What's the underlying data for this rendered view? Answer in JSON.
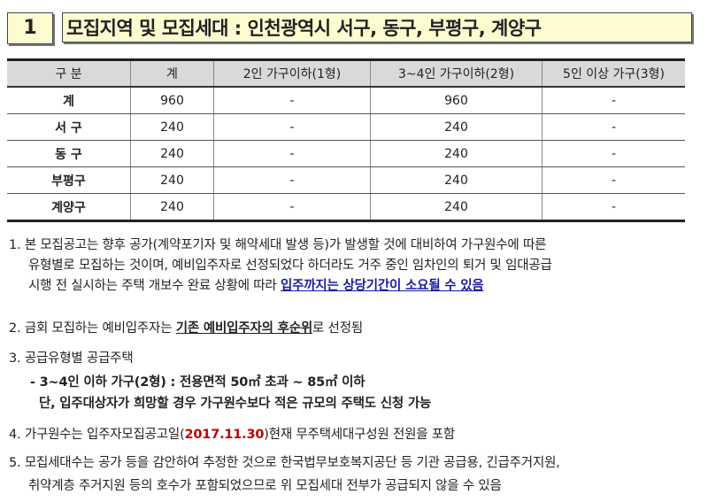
{
  "header": {
    "number": "1",
    "title": "모집지역 및 모집세대 : 인천광역시 서구, 동구, 부평구, 계양구"
  },
  "table": {
    "columns": [
      "구  분",
      "계",
      "2인 가구이하(1형)",
      "3~4인 가구이하(2형)",
      "5인 이상 가구(3형)"
    ],
    "rows": [
      [
        "계",
        "960",
        "-",
        "960",
        "-"
      ],
      [
        "서  구",
        "240",
        "-",
        "240",
        "-"
      ],
      [
        "동  구",
        "240",
        "-",
        "240",
        "-"
      ],
      [
        "부평구",
        "240",
        "-",
        "240",
        "-"
      ],
      [
        "계양구",
        "240",
        "-",
        "240",
        "-"
      ]
    ]
  },
  "notes": {
    "n1_l1": "1. 본 모집공고는 향후 공가(계약포기자 및 해약세대 발생 등)가 발생할 것에 대비하여 가구원수에 따른",
    "n1_l2": "유형별로 모집하는 것이며, 예비입주자로 선정되었다 하더라도 거주 중인 임차인의 퇴거 및 임대공급",
    "n1_l3": "시행 전 실시하는 주택 개보수 완료 상황에 따라 ",
    "n1_l3_emph": "입주까지는 상당기간이 소요될 수 있음",
    "n2_pre": "2. 금회 모집하는 예비입주자는  ",
    "n2_emph": "기존 예비입주자의 후순위",
    "n2_post": "로 선정됨",
    "n3": "3. 공급유형별 공급주택",
    "n3_sub1": "- 3~4인 이하 가구(2형) : 전용면적 50㎡ 초과 ~ 85㎡ 이하",
    "n3_sub2": "단, 입주대상자가 희망할 경우 가구원수보다 적은 규모의 주택도 신청 가능",
    "n4_pre": "4. 가구원수는 입주자모집공고일(",
    "n4_date": "2017.11.30",
    "n4_post": ")현재 무주택세대구성원 전원을 포함",
    "n5_l1": "5. 모집세대수는 공가 등을 감안하여 추정한 것으로 한국법무보호복지공단 등 기관 공급용, 긴급주거지원,",
    "n5_l2": "취약계층 주거지원 등의 호수가 포함되었으므로 위 모집세대 전부가 공급되지 않을 수 있음"
  },
  "colors": {
    "title_bg": "#fdfbd0",
    "header_bg": "#d9d9d9",
    "emphasis_blue": "#1a1aa0",
    "date_red": "#c00000"
  }
}
